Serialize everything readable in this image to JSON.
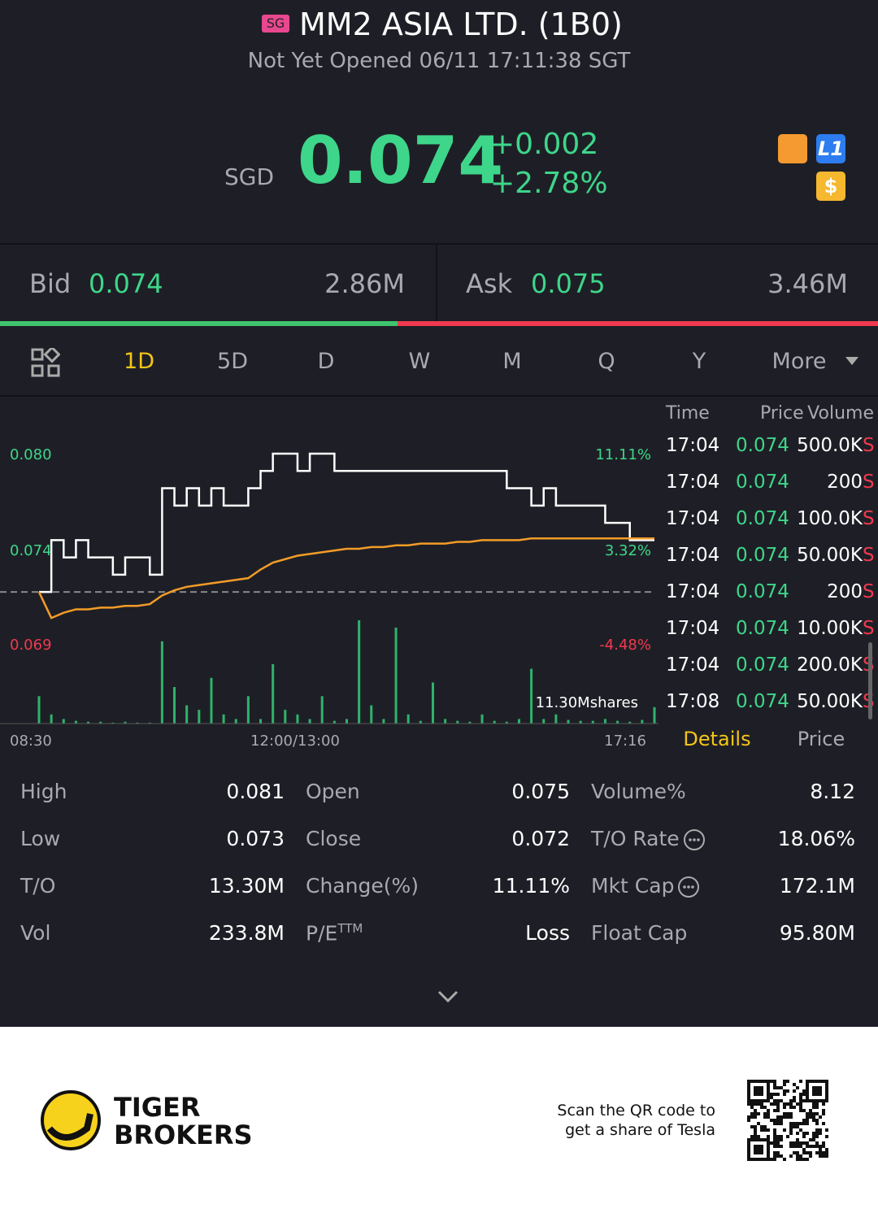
{
  "header": {
    "badge": "SG",
    "title": "MM2 ASIA LTD. (1B0)",
    "status": "Not Yet Opened 06/11 17:11:38 SGT"
  },
  "quote": {
    "currency": "SGD",
    "price": "0.074",
    "change": "+0.002",
    "change_pct": "+2.78%",
    "badges": [
      "L1",
      "$"
    ]
  },
  "bid_ask": {
    "bid_label": "Bid",
    "bid": "0.074",
    "bid_size": "2.86M",
    "ask_label": "Ask",
    "ask": "0.075",
    "ask_size": "3.46M"
  },
  "tabs": [
    "1D",
    "5D",
    "D",
    "W",
    "M",
    "Q",
    "Y",
    "More"
  ],
  "chart_data": {
    "type": "line",
    "x_labels": [
      "08:30",
      "12:00/13:00",
      "17:16"
    ],
    "left_labels": [
      "0.080",
      "0.074",
      "0.069"
    ],
    "right_labels": [
      "11.11%",
      "3.32%",
      "-4.48%"
    ],
    "volume_label": "11.30Mshares",
    "ylim": [
      0.069,
      0.08
    ],
    "prev_close": 0.072,
    "volume_max": 11.3,
    "series": [
      {
        "name": "Price",
        "color": "#ffffff",
        "values": [
          0.072,
          0.075,
          0.074,
          0.075,
          0.074,
          0.074,
          0.073,
          0.074,
          0.074,
          0.073,
          0.078,
          0.077,
          0.078,
          0.077,
          0.078,
          0.077,
          0.077,
          0.078,
          0.079,
          0.08,
          0.08,
          0.079,
          0.08,
          0.08,
          0.079,
          0.079,
          0.079,
          0.079,
          0.079,
          0.079,
          0.079,
          0.079,
          0.079,
          0.079,
          0.079,
          0.079,
          0.079,
          0.079,
          0.078,
          0.078,
          0.077,
          0.078,
          0.077,
          0.077,
          0.077,
          0.077,
          0.076,
          0.076,
          0.075,
          0.075,
          0.075
        ]
      },
      {
        "name": "Average",
        "color": "#f39c27",
        "values": [
          0.072,
          0.0705,
          0.0708,
          0.071,
          0.071,
          0.0711,
          0.0711,
          0.0712,
          0.0712,
          0.0713,
          0.0718,
          0.0721,
          0.0723,
          0.0724,
          0.0725,
          0.0726,
          0.0727,
          0.0728,
          0.0733,
          0.0737,
          0.0739,
          0.0741,
          0.0742,
          0.0743,
          0.0744,
          0.0745,
          0.0745,
          0.0746,
          0.0746,
          0.0747,
          0.0747,
          0.0748,
          0.0748,
          0.0748,
          0.0749,
          0.0749,
          0.075,
          0.075,
          0.075,
          0.075,
          0.0751,
          0.0751,
          0.0751,
          0.0751,
          0.0751,
          0.0751,
          0.0751,
          0.0751,
          0.0751,
          0.0751,
          0.0751
        ]
      },
      {
        "name": "Volume",
        "color": "#2fb36b",
        "values": [
          3,
          1,
          0.5,
          0.3,
          0.2,
          0.2,
          0.1,
          0.2,
          0.1,
          0.1,
          9,
          4,
          2,
          1.5,
          5,
          1,
          0.5,
          3,
          0.5,
          6.5,
          1.5,
          1,
          0.5,
          3,
          0.3,
          0.5,
          11.3,
          2,
          0.5,
          10.5,
          1,
          0.3,
          4.5,
          0.5,
          0.3,
          0.2,
          1,
          0.3,
          0.2,
          0.5,
          6,
          0.5,
          1,
          0.4,
          0.3,
          0.3,
          0.5,
          0.3,
          0.2,
          0.4,
          1.8
        ]
      }
    ]
  },
  "trades": {
    "headers": [
      "Time",
      "Price",
      "Volume"
    ],
    "side": "S",
    "rows": [
      [
        "17:04",
        "0.074",
        "500.0K"
      ],
      [
        "17:04",
        "0.074",
        "200"
      ],
      [
        "17:04",
        "0.074",
        "100.0K"
      ],
      [
        "17:04",
        "0.074",
        "50.00K"
      ],
      [
        "17:04",
        "0.074",
        "200"
      ],
      [
        "17:04",
        "0.074",
        "10.00K"
      ],
      [
        "17:04",
        "0.074",
        "200.0K"
      ],
      [
        "17:08",
        "0.074",
        "50.00K"
      ]
    ],
    "tabs": [
      "Details",
      "Price"
    ]
  },
  "details": {
    "rows": [
      [
        [
          "High",
          "0.081"
        ],
        [
          "Open",
          "0.075"
        ],
        [
          "Volume%",
          "8.12"
        ]
      ],
      [
        [
          "Low",
          "0.073"
        ],
        [
          "Close",
          "0.072"
        ],
        [
          "T/O Rate",
          "18.06%"
        ]
      ],
      [
        [
          "T/O",
          "13.30M"
        ],
        [
          "Change(%)",
          "11.11%"
        ],
        [
          "Mkt Cap",
          "172.1M"
        ]
      ],
      [
        [
          "Vol",
          "233.8M"
        ],
        [
          "P/E",
          "Loss"
        ],
        [
          "Float Cap",
          "95.80M"
        ]
      ]
    ],
    "pe_sup": "TTM"
  },
  "footer": {
    "brand": [
      "TIGER",
      "BROKERS"
    ],
    "scan": [
      "Scan the QR code to",
      "get a share of Tesla"
    ]
  }
}
